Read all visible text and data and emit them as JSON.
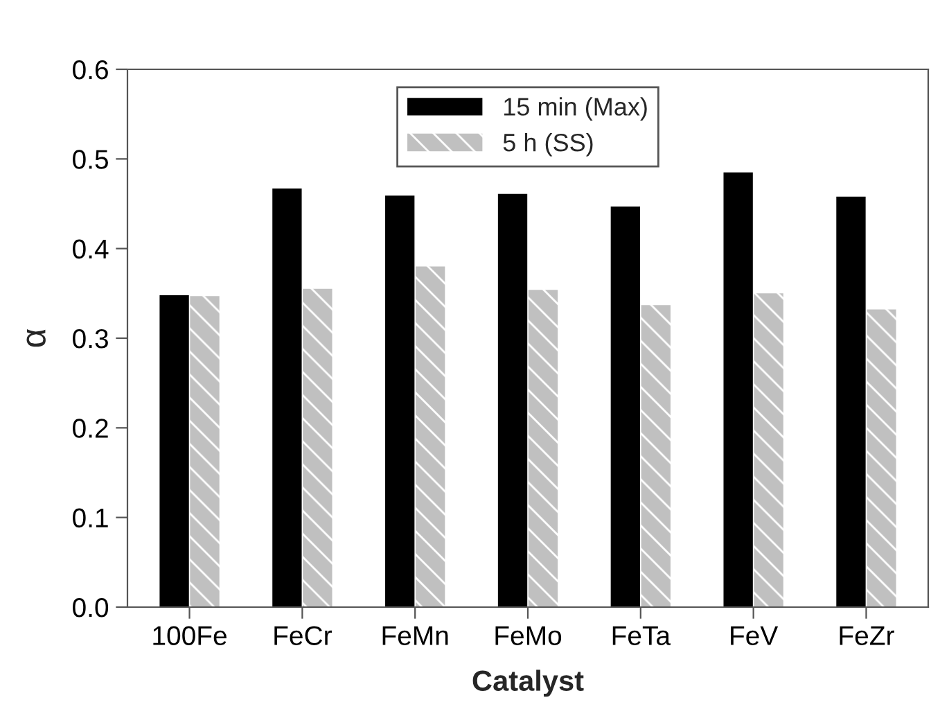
{
  "chart_data": {
    "type": "bar",
    "xlabel": "Catalyst",
    "ylabel": "α",
    "categories": [
      "100Fe",
      "FeCr",
      "FeMn",
      "FeMo",
      "FeTa",
      "FeV",
      "FeZr"
    ],
    "series": [
      {
        "name": "15 min (Max)",
        "color": "#000000",
        "values": [
          0.348,
          0.467,
          0.459,
          0.461,
          0.447,
          0.485,
          0.458
        ]
      },
      {
        "name": "5 h (SS)",
        "color": "#c0c0c0",
        "values": [
          0.347,
          0.355,
          0.38,
          0.354,
          0.337,
          0.35,
          0.332
        ]
      }
    ],
    "ylim": [
      0,
      0.6
    ],
    "yticks": [
      {
        "value": 0,
        "label": "0.0"
      },
      0.1,
      0.2,
      0.3,
      0.4,
      0.5,
      0.6
    ],
    "grid": false,
    "legend": "top"
  }
}
